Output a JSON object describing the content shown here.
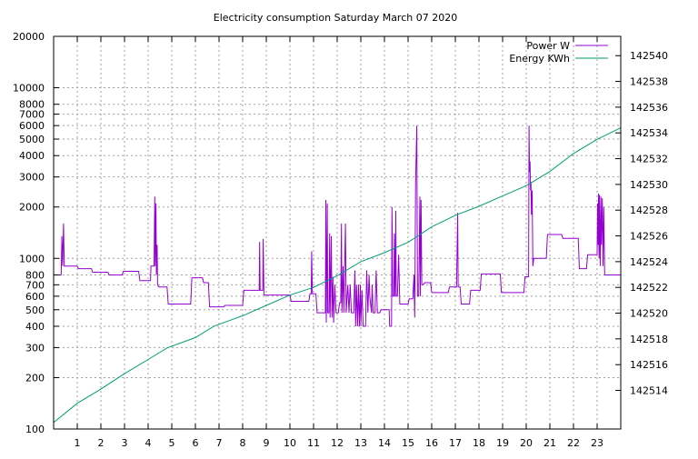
{
  "chart_data": {
    "type": "line",
    "title": "Electricity consumption Saturday March 07 2020",
    "x_ticks": [
      "1",
      "2",
      "3",
      "4",
      "5",
      "6",
      "7",
      "8",
      "9",
      "10",
      "11",
      "12",
      "13",
      "14",
      "15",
      "16",
      "17",
      "18",
      "19",
      "20",
      "21",
      "22",
      "23"
    ],
    "xlim": [
      0,
      24
    ],
    "y_left": {
      "scale": "log",
      "lim": [
        100,
        20000
      ],
      "ticks": [
        "100",
        "200",
        "300",
        "400",
        "500",
        "600",
        "700",
        "800",
        "1000",
        "2000",
        "3000",
        "4000",
        "5000",
        "6000",
        "7000",
        "8000",
        "10000",
        "20000"
      ]
    },
    "y_right": {
      "lim": [
        142511,
        142541.5
      ],
      "ticks": [
        "142514",
        "142516",
        "142518",
        "142520",
        "142522",
        "142524",
        "142526",
        "142528",
        "142530",
        "142532",
        "142534",
        "142536",
        "142538",
        "142540"
      ]
    },
    "grid": true,
    "legend_position": "top-right",
    "colors": {
      "power": "#9400d3",
      "energy": "#009e73"
    },
    "series": [
      {
        "name": "Power W",
        "axis": "left",
        "points": [
          [
            0.0,
            800
          ],
          [
            0.32,
            800
          ],
          [
            0.35,
            1350
          ],
          [
            0.38,
            900
          ],
          [
            0.42,
            1600
          ],
          [
            0.45,
            900
          ],
          [
            1.0,
            900
          ],
          [
            1.05,
            870
          ],
          [
            1.6,
            870
          ],
          [
            1.65,
            830
          ],
          [
            2.3,
            830
          ],
          [
            2.35,
            800
          ],
          [
            2.9,
            800
          ],
          [
            2.95,
            840
          ],
          [
            3.6,
            840
          ],
          [
            3.65,
            740
          ],
          [
            4.1,
            740
          ],
          [
            4.12,
            900
          ],
          [
            4.25,
            900
          ],
          [
            4.28,
            2300
          ],
          [
            4.3,
            900
          ],
          [
            4.33,
            2100
          ],
          [
            4.35,
            800
          ],
          [
            4.38,
            1200
          ],
          [
            4.4,
            700
          ],
          [
            4.45,
            680
          ],
          [
            4.8,
            680
          ],
          [
            4.85,
            540
          ],
          [
            5.8,
            540
          ],
          [
            5.85,
            770
          ],
          [
            6.3,
            770
          ],
          [
            6.35,
            720
          ],
          [
            6.55,
            720
          ],
          [
            6.6,
            520
          ],
          [
            7.2,
            520
          ],
          [
            7.25,
            530
          ],
          [
            8.0,
            530
          ],
          [
            8.05,
            650
          ],
          [
            8.7,
            650
          ],
          [
            8.72,
            1250
          ],
          [
            8.74,
            650
          ],
          [
            8.85,
            650
          ],
          [
            8.87,
            1300
          ],
          [
            8.9,
            610
          ],
          [
            10.0,
            610
          ],
          [
            10.05,
            560
          ],
          [
            10.8,
            560
          ],
          [
            10.85,
            620
          ],
          [
            10.9,
            620
          ],
          [
            10.92,
            1100
          ],
          [
            10.95,
            620
          ],
          [
            11.1,
            620
          ],
          [
            11.15,
            480
          ],
          [
            11.5,
            480
          ],
          [
            11.52,
            2200
          ],
          [
            11.54,
            420
          ],
          [
            11.58,
            2100
          ],
          [
            11.6,
            480
          ],
          [
            11.65,
            480
          ],
          [
            11.68,
            1400
          ],
          [
            11.7,
            450
          ],
          [
            11.75,
            1350
          ],
          [
            11.78,
            450
          ],
          [
            11.82,
            780
          ],
          [
            11.85,
            420
          ],
          [
            11.9,
            700
          ],
          [
            11.95,
            480
          ],
          [
            12.05,
            480
          ],
          [
            12.1,
            550
          ],
          [
            12.15,
            550
          ],
          [
            12.18,
            1600
          ],
          [
            12.2,
            480
          ],
          [
            12.25,
            900
          ],
          [
            12.28,
            480
          ],
          [
            12.35,
            1600
          ],
          [
            12.38,
            480
          ],
          [
            12.45,
            700
          ],
          [
            12.5,
            480
          ],
          [
            12.55,
            700
          ],
          [
            12.6,
            480
          ],
          [
            12.7,
            480
          ],
          [
            12.75,
            850
          ],
          [
            12.78,
            400
          ],
          [
            12.82,
            700
          ],
          [
            12.86,
            400
          ],
          [
            12.9,
            700
          ],
          [
            12.94,
            400
          ],
          [
            12.98,
            700
          ],
          [
            13.0,
            400
          ],
          [
            13.05,
            650
          ],
          [
            13.1,
            400
          ],
          [
            13.2,
            400
          ],
          [
            13.25,
            850
          ],
          [
            13.3,
            480
          ],
          [
            13.35,
            800
          ],
          [
            13.38,
            600
          ],
          [
            13.45,
            480
          ],
          [
            13.48,
            700
          ],
          [
            13.52,
            480
          ],
          [
            13.6,
            480
          ],
          [
            13.65,
            850
          ],
          [
            13.7,
            480
          ],
          [
            13.8,
            480
          ],
          [
            13.85,
            500
          ],
          [
            14.2,
            500
          ],
          [
            14.22,
            400
          ],
          [
            14.3,
            400
          ],
          [
            14.32,
            2000
          ],
          [
            14.35,
            600
          ],
          [
            14.4,
            600
          ],
          [
            14.42,
            1400
          ],
          [
            14.45,
            600
          ],
          [
            14.48,
            1900
          ],
          [
            14.5,
            600
          ],
          [
            14.55,
            600
          ],
          [
            14.6,
            1050
          ],
          [
            14.65,
            540
          ],
          [
            15.0,
            540
          ],
          [
            15.05,
            580
          ],
          [
            15.2,
            580
          ],
          [
            15.25,
            800
          ],
          [
            15.28,
            450
          ],
          [
            15.32,
            2800
          ],
          [
            15.35,
            4500
          ],
          [
            15.37,
            6000
          ],
          [
            15.4,
            600
          ],
          [
            15.45,
            600
          ],
          [
            15.5,
            2300
          ],
          [
            15.52,
            600
          ],
          [
            15.55,
            2200
          ],
          [
            15.58,
            700
          ],
          [
            15.65,
            700
          ],
          [
            15.7,
            720
          ],
          [
            15.95,
            720
          ],
          [
            16.0,
            630
          ],
          [
            16.7,
            630
          ],
          [
            16.75,
            680
          ],
          [
            17.05,
            680
          ],
          [
            17.1,
            1850
          ],
          [
            17.12,
            680
          ],
          [
            17.2,
            680
          ],
          [
            17.25,
            540
          ],
          [
            17.6,
            540
          ],
          [
            17.65,
            650
          ],
          [
            18.05,
            650
          ],
          [
            18.1,
            810
          ],
          [
            18.9,
            810
          ],
          [
            18.95,
            630
          ],
          [
            19.9,
            630
          ],
          [
            19.95,
            780
          ],
          [
            20.1,
            780
          ],
          [
            20.12,
            6000
          ],
          [
            20.14,
            3200
          ],
          [
            20.16,
            3700
          ],
          [
            20.18,
            2500
          ],
          [
            20.2,
            2800
          ],
          [
            20.22,
            1800
          ],
          [
            20.25,
            2500
          ],
          [
            20.28,
            900
          ],
          [
            20.32,
            1000
          ],
          [
            20.85,
            1000
          ],
          [
            20.9,
            1380
          ],
          [
            21.5,
            1380
          ],
          [
            21.55,
            1310
          ],
          [
            22.2,
            1310
          ],
          [
            22.25,
            870
          ],
          [
            22.55,
            870
          ],
          [
            22.6,
            1050
          ],
          [
            23.0,
            1050
          ],
          [
            23.02,
            2100
          ],
          [
            23.04,
            1200
          ],
          [
            23.06,
            2400
          ],
          [
            23.08,
            1000
          ],
          [
            23.1,
            2350
          ],
          [
            23.13,
            900
          ],
          [
            23.16,
            2300
          ],
          [
            23.18,
            1200
          ],
          [
            23.22,
            2250
          ],
          [
            23.25,
            900
          ],
          [
            23.28,
            2000
          ],
          [
            23.32,
            800
          ],
          [
            24.0,
            800
          ]
        ]
      },
      {
        "name": "Energy KWh",
        "axis": "right",
        "points": [
          [
            0.0,
            142511.5
          ],
          [
            1.0,
            142513.0
          ],
          [
            2.0,
            142514.1
          ],
          [
            3.0,
            142515.3
          ],
          [
            4.0,
            142516.4
          ],
          [
            4.8,
            142517.3
          ],
          [
            6.0,
            142518.1
          ],
          [
            6.8,
            142519.0
          ],
          [
            8.0,
            142519.8
          ],
          [
            9.0,
            142520.6
          ],
          [
            10.0,
            142521.4
          ],
          [
            11.0,
            142522.0
          ],
          [
            12.0,
            142522.9
          ],
          [
            13.0,
            142524.0
          ],
          [
            14.0,
            142524.7
          ],
          [
            15.0,
            142525.5
          ],
          [
            16.0,
            142526.7
          ],
          [
            17.0,
            142527.6
          ],
          [
            18.0,
            142528.3
          ],
          [
            19.0,
            142529.1
          ],
          [
            20.0,
            142529.9
          ],
          [
            21.0,
            142531.0
          ],
          [
            22.0,
            142532.4
          ],
          [
            23.0,
            142533.5
          ],
          [
            24.0,
            142534.4
          ]
        ]
      }
    ]
  }
}
